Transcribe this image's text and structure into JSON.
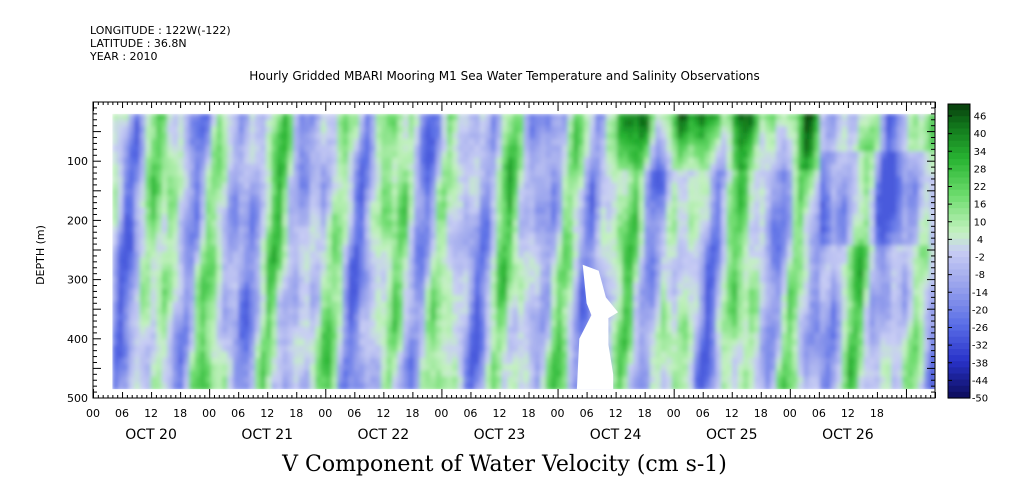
{
  "header": {
    "longitude": "LONGITUDE : 122W(-122)",
    "latitude": "LATITUDE : 36.8N",
    "year": "YEAR : 2010",
    "title": "Hourly Gridded MBARI Mooring M1 Sea Water Temperature and Salinity Observations"
  },
  "chart_data": {
    "type": "heatmap",
    "title": "Hourly Gridded MBARI Mooring M1 Sea Water Temperature and Salinity Observations",
    "subtitle": "V Component of Water Velocity (cm s-1)",
    "xlabel": "",
    "ylabel": "DEPTH (m)",
    "x_range_hours": [
      0,
      174
    ],
    "y_range": [
      500,
      0
    ],
    "y_reversed": true,
    "data_depth_range": [
      20,
      485
    ],
    "data_time_range_hours": [
      4,
      174
    ],
    "y_ticks": [
      100,
      200,
      300,
      400,
      500
    ],
    "x_hour_ticks": [
      "00",
      "06",
      "12",
      "18",
      "00",
      "06",
      "12",
      "18",
      "00",
      "06",
      "12",
      "18",
      "00",
      "06",
      "12",
      "18",
      "00",
      "06",
      "12",
      "18",
      "00",
      "06",
      "12",
      "18",
      "00",
      "06",
      "12",
      "18"
    ],
    "x_day_labels": [
      "OCT 20",
      "OCT 21",
      "OCT 22",
      "OCT 23",
      "OCT 24",
      "OCT 25",
      "OCT 26"
    ],
    "colorbar": {
      "labels": [
        "46",
        "40",
        "34",
        "28",
        "22",
        "16",
        "10",
        "4",
        "-2",
        "-8",
        "-14",
        "-20",
        "-26",
        "-32",
        "-38",
        "-44",
        "-50"
      ],
      "range": [
        -50,
        46
      ],
      "low_color": "#141478",
      "mid_low_color": "#aab2ee",
      "mid_high_color": "#a8eaa4",
      "high_color": "#0e4a12"
    },
    "missing_region": {
      "hours": [
        100,
        108
      ],
      "depth": [
        275,
        485
      ]
    }
  }
}
